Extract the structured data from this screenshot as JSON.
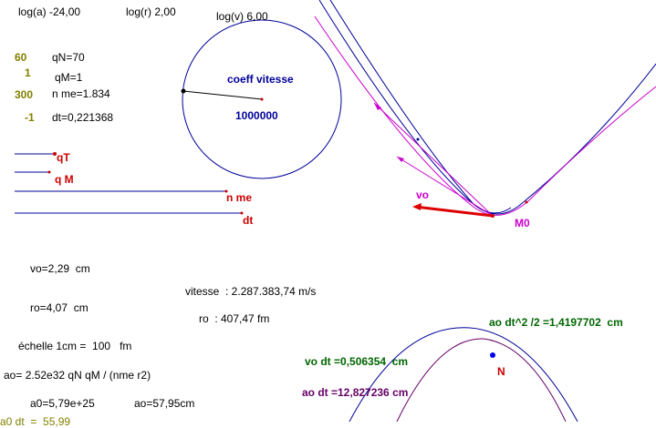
{
  "header": {
    "log_a": "log(a) -24,00",
    "log_r": "log(r) 2,00",
    "log_v": "log(v) 6,00"
  },
  "params": {
    "n60": "60",
    "qN": "qN=70",
    "n1": "1",
    "qM": "qM=1",
    "n300": "300",
    "nme": "n me=1.834",
    "nm1": "-1",
    "dt": "dt=0,221368"
  },
  "circle": {
    "title": "coeff vitesse",
    "value": "1000000"
  },
  "sliders": {
    "qT": "qT",
    "qM": "q M",
    "nme": "n me",
    "dt": "dt"
  },
  "orbit": {
    "vo_label": "vo",
    "m0_label": "M0",
    "n_label": "N"
  },
  "results": {
    "vo": "vo=2,29  cm",
    "ro": "ro=4,07  cm",
    "echelle": "échelle 1cm =  100   fm",
    "ao_formula": "ao= 2.52e32 qN qM / (nme r2)",
    "a0": "a0=5,79e+25",
    "ao_cm": "ao=57,95cm",
    "vitesse": "vitesse  : 2.287.383,74 m/s",
    "ro_fm": "ro  : 407,47 fm",
    "ao_dt2": "ao dt^2 /2 =1,4197702  cm",
    "vo_dt": "vo dt =0,506354  cm",
    "ao_dt": "ao dt =12,827236 cm",
    "cut": "a0 dt  =  55,99"
  },
  "colors": {
    "blue": "#000099",
    "red": "#cc0000",
    "magenta": "#cc00cc",
    "olive": "#808000",
    "green": "#006600",
    "purple": "#660066"
  }
}
